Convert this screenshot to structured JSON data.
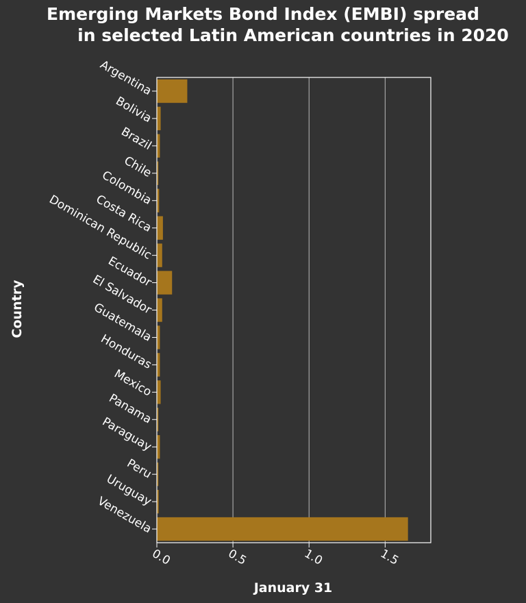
{
  "chart_data": {
    "type": "bar",
    "orientation": "horizontal",
    "title": "Emerging Markets Bond Index (EMBI) spread in selected Latin American countries in 2020",
    "title_lines": [
      "Emerging Markets Bond Index (EMBI) spread",
      "in selected Latin American countries in 2020"
    ],
    "xlabel": "January 31",
    "ylabel": "Country",
    "categories": [
      "Argentina",
      "Bolivia",
      "Brazil",
      "Chile",
      "Colombia",
      "Costa Rica",
      "Dominican Republic",
      "Ecuador",
      "El Salvador",
      "Guatemala",
      "Honduras",
      "Mexico",
      "Panama",
      "Paraguay",
      "Peru",
      "Uruguay",
      "Venezuela"
    ],
    "values": [
      0.2,
      0.025,
      0.02,
      0.01,
      0.015,
      0.04,
      0.035,
      0.1,
      0.035,
      0.02,
      0.02,
      0.025,
      0.01,
      0.02,
      0.01,
      0.012,
      1.65
    ],
    "xlim": [
      0,
      1.8
    ],
    "xticks": [
      0,
      0.5,
      1.0,
      1.5
    ],
    "xtick_labels": [
      "0.0",
      "0.5",
      "1.0",
      "1.5"
    ],
    "grid": "vertical",
    "legend": "none",
    "colors": {
      "bar": "#a6761d",
      "background": "#333333",
      "grid": "#bbbbbb",
      "frame": "#ffffff",
      "text": "#ffffff"
    }
  }
}
